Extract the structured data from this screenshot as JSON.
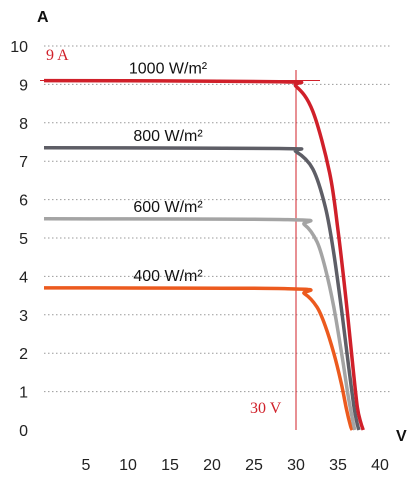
{
  "chart_data": {
    "type": "line",
    "title": "",
    "xlabel": "V",
    "ylabel": "A",
    "xlim": [
      0,
      40
    ],
    "ylim": [
      0,
      10
    ],
    "xticks": [
      "5",
      "10",
      "15",
      "20",
      "25",
      "30",
      "35",
      "40"
    ],
    "yticks": [
      "0",
      "1",
      "2",
      "3",
      "4",
      "5",
      "6",
      "7",
      "8",
      "9",
      "10"
    ],
    "grid": "horizontal dotted",
    "series": [
      {
        "name": "1000 W/m²",
        "color": "#d0202a",
        "x": [
          0,
          28,
          30,
          32,
          34,
          35,
          36,
          36.8,
          37.3,
          37.7,
          38.0
        ],
        "y": [
          9.1,
          9.07,
          8.95,
          8.3,
          6.7,
          5.2,
          3.3,
          1.6,
          0.6,
          0.2,
          0
        ]
      },
      {
        "name": "800 W/m²",
        "color": "#5e5e66",
        "x": [
          0,
          28,
          30,
          32,
          33.5,
          34.5,
          35.5,
          36.3,
          36.9,
          37.3,
          37.5
        ],
        "y": [
          7.35,
          7.33,
          7.25,
          6.8,
          5.8,
          4.6,
          3.0,
          1.6,
          0.6,
          0.15,
          0
        ]
      },
      {
        "name": "600 W/m²",
        "color": "#a4a4a4",
        "x": [
          0,
          29,
          31,
          32.5,
          33.5,
          34.5,
          35.5,
          36.2,
          36.8,
          37.0
        ],
        "y": [
          5.5,
          5.48,
          5.35,
          4.9,
          4.2,
          3.2,
          1.9,
          0.9,
          0.2,
          0
        ]
      },
      {
        "name": "400 W/m²",
        "color": "#ec5a1e",
        "x": [
          0,
          29,
          31,
          32.5,
          33.5,
          34.5,
          35.4,
          36.0,
          36.5,
          36.7
        ],
        "y": [
          3.7,
          3.68,
          3.55,
          3.2,
          2.7,
          2.0,
          1.2,
          0.55,
          0.1,
          0
        ]
      }
    ],
    "annotations": [
      {
        "text": "9 A",
        "x": 0,
        "y": 9.1,
        "color": "#d0202a"
      },
      {
        "text": "30 V",
        "x": 30,
        "y": 0,
        "color": "#d0202a"
      }
    ]
  }
}
